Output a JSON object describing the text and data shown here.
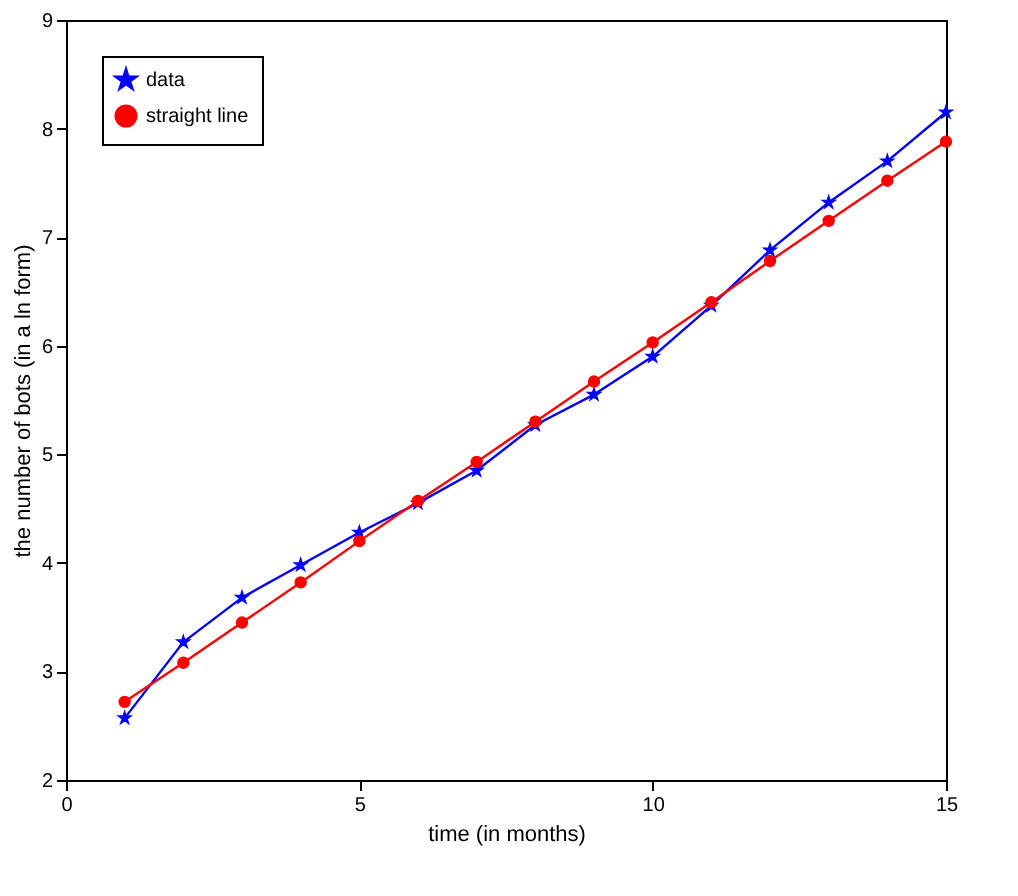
{
  "chart_data": {
    "type": "line",
    "xlabel": "time (in months)",
    "ylabel": "the number of bots (in a ln form)",
    "x": [
      1,
      2,
      3,
      4,
      5,
      6,
      7,
      8,
      9,
      10,
      11,
      12,
      13,
      14,
      15
    ],
    "series": [
      {
        "name": "data",
        "color": "#0000ff",
        "marker": "star",
        "values": [
          2.57,
          3.27,
          3.68,
          3.98,
          4.28,
          4.55,
          4.85,
          5.27,
          5.55,
          5.9,
          6.37,
          6.88,
          7.32,
          7.7,
          8.15
        ]
      },
      {
        "name": "straight line",
        "color": "#ff0000",
        "marker": "circle",
        "values": [
          2.72,
          3.08,
          3.45,
          3.82,
          4.2,
          4.57,
          4.93,
          5.3,
          5.67,
          6.03,
          6.4,
          6.78,
          7.15,
          7.52,
          7.88
        ]
      }
    ],
    "xlim": [
      0,
      15
    ],
    "xticks": [
      0,
      5,
      10,
      15
    ],
    "ylim": [
      2,
      9
    ],
    "yticks": [
      2,
      3,
      4,
      5,
      6,
      7,
      8,
      9
    ],
    "grid": false,
    "legend": "top left",
    "line_style": "solid"
  }
}
